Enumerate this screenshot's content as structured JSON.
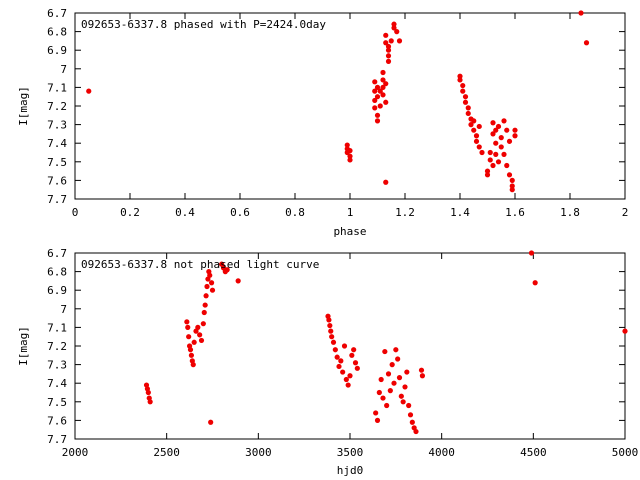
{
  "chart_data": [
    {
      "type": "scatter",
      "title": "092653-6337.8 phased with P=2424.0day",
      "xlabel": "phase",
      "ylabel": "I[mag]",
      "xlim": [
        0,
        2
      ],
      "ylim": [
        6.7,
        7.7
      ],
      "y_inverted": true,
      "xticks": [
        0,
        0.2,
        0.4,
        0.6,
        0.8,
        1,
        1.2,
        1.4,
        1.6,
        1.8,
        2
      ],
      "xtick_labels": [
        "0",
        "0.2",
        "0.4",
        "0.6",
        "0.8",
        "1",
        "1.2",
        "1.4",
        "1.6",
        "1.8",
        "2"
      ],
      "yticks": [
        6.7,
        6.8,
        6.9,
        7,
        7.1,
        7.2,
        7.3,
        7.4,
        7.5,
        7.6,
        7.7
      ],
      "ytick_labels": [
        "6.7",
        "6.8",
        "6.9",
        "7",
        "7.1",
        "7.2",
        "7.3",
        "7.4",
        "7.5",
        "7.6",
        "7.7"
      ],
      "marker_color": "#ee0000",
      "points": [
        [
          0.05,
          7.12
        ],
        [
          0.99,
          7.41
        ],
        [
          0.99,
          7.43
        ],
        [
          0.99,
          7.45
        ],
        [
          1.0,
          7.47
        ],
        [
          1.0,
          7.49
        ],
        [
          1.0,
          7.44
        ],
        [
          1.09,
          7.07
        ],
        [
          1.09,
          7.12
        ],
        [
          1.09,
          7.17
        ],
        [
          1.09,
          7.21
        ],
        [
          1.1,
          7.25
        ],
        [
          1.1,
          7.28
        ],
        [
          1.1,
          7.1
        ],
        [
          1.1,
          7.15
        ],
        [
          1.11,
          7.12
        ],
        [
          1.11,
          7.2
        ],
        [
          1.12,
          7.02
        ],
        [
          1.12,
          7.06
        ],
        [
          1.12,
          7.1
        ],
        [
          1.12,
          7.14
        ],
        [
          1.13,
          7.18
        ],
        [
          1.13,
          7.08
        ],
        [
          1.13,
          6.82
        ],
        [
          1.13,
          6.86
        ],
        [
          1.14,
          6.88
        ],
        [
          1.14,
          6.93
        ],
        [
          1.14,
          6.96
        ],
        [
          1.14,
          6.9
        ],
        [
          1.15,
          6.85
        ],
        [
          1.16,
          6.76
        ],
        [
          1.16,
          6.78
        ],
        [
          1.17,
          6.8
        ],
        [
          1.18,
          6.85
        ],
        [
          1.13,
          7.61
        ],
        [
          1.4,
          7.04
        ],
        [
          1.4,
          7.06
        ],
        [
          1.41,
          7.09
        ],
        [
          1.41,
          7.12
        ],
        [
          1.42,
          7.15
        ],
        [
          1.42,
          7.18
        ],
        [
          1.43,
          7.21
        ],
        [
          1.43,
          7.24
        ],
        [
          1.44,
          7.27
        ],
        [
          1.44,
          7.3
        ],
        [
          1.45,
          7.28
        ],
        [
          1.45,
          7.33
        ],
        [
          1.46,
          7.36
        ],
        [
          1.46,
          7.39
        ],
        [
          1.47,
          7.31
        ],
        [
          1.47,
          7.42
        ],
        [
          1.48,
          7.45
        ],
        [
          1.5,
          7.57
        ],
        [
          1.5,
          7.55
        ],
        [
          1.51,
          7.45
        ],
        [
          1.51,
          7.49
        ],
        [
          1.52,
          7.52
        ],
        [
          1.52,
          7.35
        ],
        [
          1.53,
          7.4
        ],
        [
          1.53,
          7.46
        ],
        [
          1.54,
          7.31
        ],
        [
          1.54,
          7.5
        ],
        [
          1.55,
          7.37
        ],
        [
          1.55,
          7.42
        ],
        [
          1.56,
          7.28
        ],
        [
          1.56,
          7.46
        ],
        [
          1.57,
          7.33
        ],
        [
          1.57,
          7.52
        ],
        [
          1.58,
          7.39
        ],
        [
          1.58,
          7.57
        ],
        [
          1.59,
          7.6
        ],
        [
          1.59,
          7.63
        ],
        [
          1.59,
          7.65
        ],
        [
          1.52,
          7.29
        ],
        [
          1.53,
          7.33
        ],
        [
          1.6,
          7.33
        ],
        [
          1.6,
          7.36
        ],
        [
          1.84,
          6.7
        ],
        [
          1.86,
          6.86
        ]
      ]
    },
    {
      "type": "scatter",
      "title": "092653-6337.8 not phased light curve",
      "xlabel": "hjd0",
      "ylabel": "I[mag]",
      "xlim": [
        2000,
        5000
      ],
      "ylim": [
        6.7,
        7.7
      ],
      "y_inverted": true,
      "xticks": [
        2000,
        2500,
        3000,
        3500,
        4000,
        4500,
        5000
      ],
      "xtick_labels": [
        "2000",
        "2500",
        "3000",
        "3500",
        "4000",
        "4500",
        "5000"
      ],
      "yticks": [
        6.7,
        6.8,
        6.9,
        7,
        7.1,
        7.2,
        7.3,
        7.4,
        7.5,
        7.6,
        7.7
      ],
      "ytick_labels": [
        "6.7",
        "6.8",
        "6.9",
        "7",
        "7.1",
        "7.2",
        "7.3",
        "7.4",
        "7.5",
        "7.6",
        "7.7"
      ],
      "marker_color": "#ee0000",
      "points": [
        [
          2390,
          7.41
        ],
        [
          2395,
          7.43
        ],
        [
          2400,
          7.45
        ],
        [
          2405,
          7.48
        ],
        [
          2410,
          7.5
        ],
        [
          2610,
          7.07
        ],
        [
          2615,
          7.1
        ],
        [
          2620,
          7.15
        ],
        [
          2625,
          7.2
        ],
        [
          2630,
          7.22
        ],
        [
          2635,
          7.25
        ],
        [
          2640,
          7.28
        ],
        [
          2645,
          7.3
        ],
        [
          2650,
          7.18
        ],
        [
          2660,
          7.12
        ],
        [
          2670,
          7.1
        ],
        [
          2680,
          7.14
        ],
        [
          2690,
          7.17
        ],
        [
          2700,
          7.08
        ],
        [
          2705,
          7.02
        ],
        [
          2710,
          6.98
        ],
        [
          2715,
          6.93
        ],
        [
          2720,
          6.88
        ],
        [
          2725,
          6.84
        ],
        [
          2730,
          6.8
        ],
        [
          2735,
          6.82
        ],
        [
          2745,
          6.86
        ],
        [
          2750,
          6.9
        ],
        [
          2740,
          7.61
        ],
        [
          2800,
          6.76
        ],
        [
          2810,
          6.78
        ],
        [
          2820,
          6.8
        ],
        [
          2830,
          6.79
        ],
        [
          2890,
          6.85
        ],
        [
          3380,
          7.04
        ],
        [
          3385,
          7.06
        ],
        [
          3390,
          7.09
        ],
        [
          3395,
          7.12
        ],
        [
          3400,
          7.15
        ],
        [
          3410,
          7.18
        ],
        [
          3420,
          7.22
        ],
        [
          3430,
          7.26
        ],
        [
          3440,
          7.31
        ],
        [
          3450,
          7.28
        ],
        [
          3460,
          7.34
        ],
        [
          3470,
          7.2
        ],
        [
          3480,
          7.38
        ],
        [
          3490,
          7.41
        ],
        [
          3500,
          7.36
        ],
        [
          3510,
          7.25
        ],
        [
          3520,
          7.22
        ],
        [
          3530,
          7.29
        ],
        [
          3540,
          7.32
        ],
        [
          3640,
          7.56
        ],
        [
          3650,
          7.6
        ],
        [
          3660,
          7.45
        ],
        [
          3670,
          7.38
        ],
        [
          3680,
          7.48
        ],
        [
          3690,
          7.23
        ],
        [
          3700,
          7.52
        ],
        [
          3710,
          7.35
        ],
        [
          3720,
          7.44
        ],
        [
          3730,
          7.3
        ],
        [
          3740,
          7.4
        ],
        [
          3750,
          7.22
        ],
        [
          3760,
          7.27
        ],
        [
          3770,
          7.37
        ],
        [
          3780,
          7.47
        ],
        [
          3790,
          7.5
        ],
        [
          3800,
          7.42
        ],
        [
          3810,
          7.34
        ],
        [
          3820,
          7.52
        ],
        [
          3830,
          7.57
        ],
        [
          3840,
          7.61
        ],
        [
          3850,
          7.64
        ],
        [
          3860,
          7.66
        ],
        [
          3890,
          7.33
        ],
        [
          3895,
          7.36
        ],
        [
          4490,
          6.7
        ],
        [
          4510,
          6.86
        ],
        [
          5000,
          7.12
        ]
      ]
    }
  ]
}
